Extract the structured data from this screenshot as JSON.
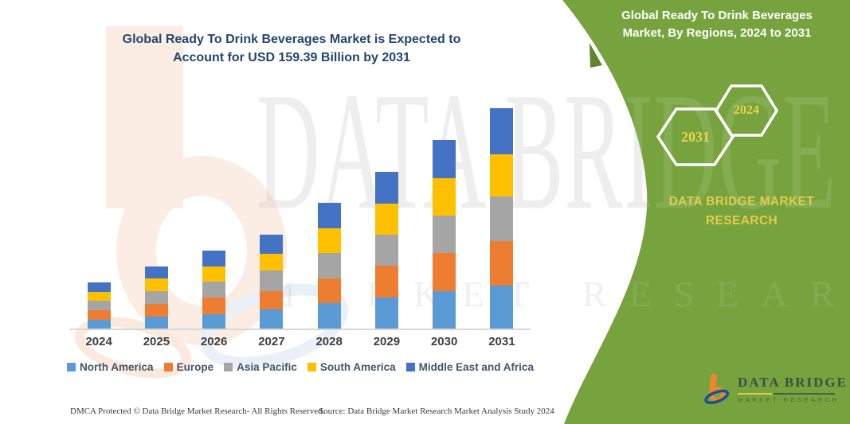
{
  "header": {
    "title_line1": "Global Ready To Drink Beverages Market is Expected to",
    "title_line2": "Account for USD 159.39 Billion by 2031"
  },
  "side_panel": {
    "title": "Global Ready To Drink Beverages Market, By Regions, 2024 to 2031",
    "hexagons": [
      {
        "label": "2031"
      },
      {
        "label": "2024"
      }
    ],
    "brand_line1": "DATA BRIDGE MARKET",
    "brand_line2": "RESEARCH",
    "panel_color": "#76A33E",
    "accent_color": "#5E8430",
    "hex_text_color": "#E9D44E",
    "brand_text_color": "#E3CC4F"
  },
  "watermark": {
    "text_primary": "DATA BRIDGE",
    "text_secondary": "MARKET RESEARCH"
  },
  "logo": {
    "wordmark": "DATA BRIDGE",
    "subtitle": "MARKET RESEARCH",
    "icon": "data-bridge-b-icon",
    "orange": "#F0862D",
    "blue": "#1F4E9B"
  },
  "footer": {
    "dmca": "DMCA Protected © Data Bridge Market Research-  All Rights Reserved.",
    "source": "Source: Data Bridge Market Research  Market Analysis Study 2024"
  },
  "chart_data": {
    "type": "bar",
    "stacked": true,
    "title": "Global Ready To Drink Beverages Market is Expected to Account for USD 159.39 Billion by 2031",
    "unit": "USD Billion",
    "categories": [
      "2024",
      "2025",
      "2026",
      "2027",
      "2028",
      "2029",
      "2030",
      "2031"
    ],
    "series": [
      {
        "name": "North America",
        "color": "#5B9BD5",
        "values": [
          6.5,
          8.9,
          10.4,
          13.8,
          18.2,
          22.6,
          27.2,
          31.1
        ]
      },
      {
        "name": "Europe",
        "color": "#ED7D31",
        "values": [
          7.0,
          9.0,
          11.9,
          13.5,
          18.1,
          22.7,
          27.4,
          32.2
        ]
      },
      {
        "name": "Asia Pacific",
        "color": "#A5A5A5",
        "values": [
          6.8,
          9.1,
          11.5,
          15.0,
          18.5,
          22.7,
          27.3,
          32.3
        ]
      },
      {
        "name": "South America",
        "color": "#FFC000",
        "values": [
          6.1,
          9.2,
          11.3,
          12.0,
          17.8,
          22.5,
          27.1,
          30.4
        ]
      },
      {
        "name": "Middle East and Africa",
        "color": "#4472C4",
        "values": [
          6.8,
          8.6,
          11.6,
          13.9,
          18.2,
          22.8,
          27.3,
          33.4
        ]
      }
    ],
    "totals": [
      33.2,
      44.8,
      56.7,
      68.2,
      90.8,
      113.3,
      136.3,
      159.39
    ],
    "xlabel": "",
    "ylabel": "",
    "ylim": [
      0,
      170
    ],
    "grid": false,
    "axis_labels_visible": false,
    "legend_position": "bottom"
  }
}
